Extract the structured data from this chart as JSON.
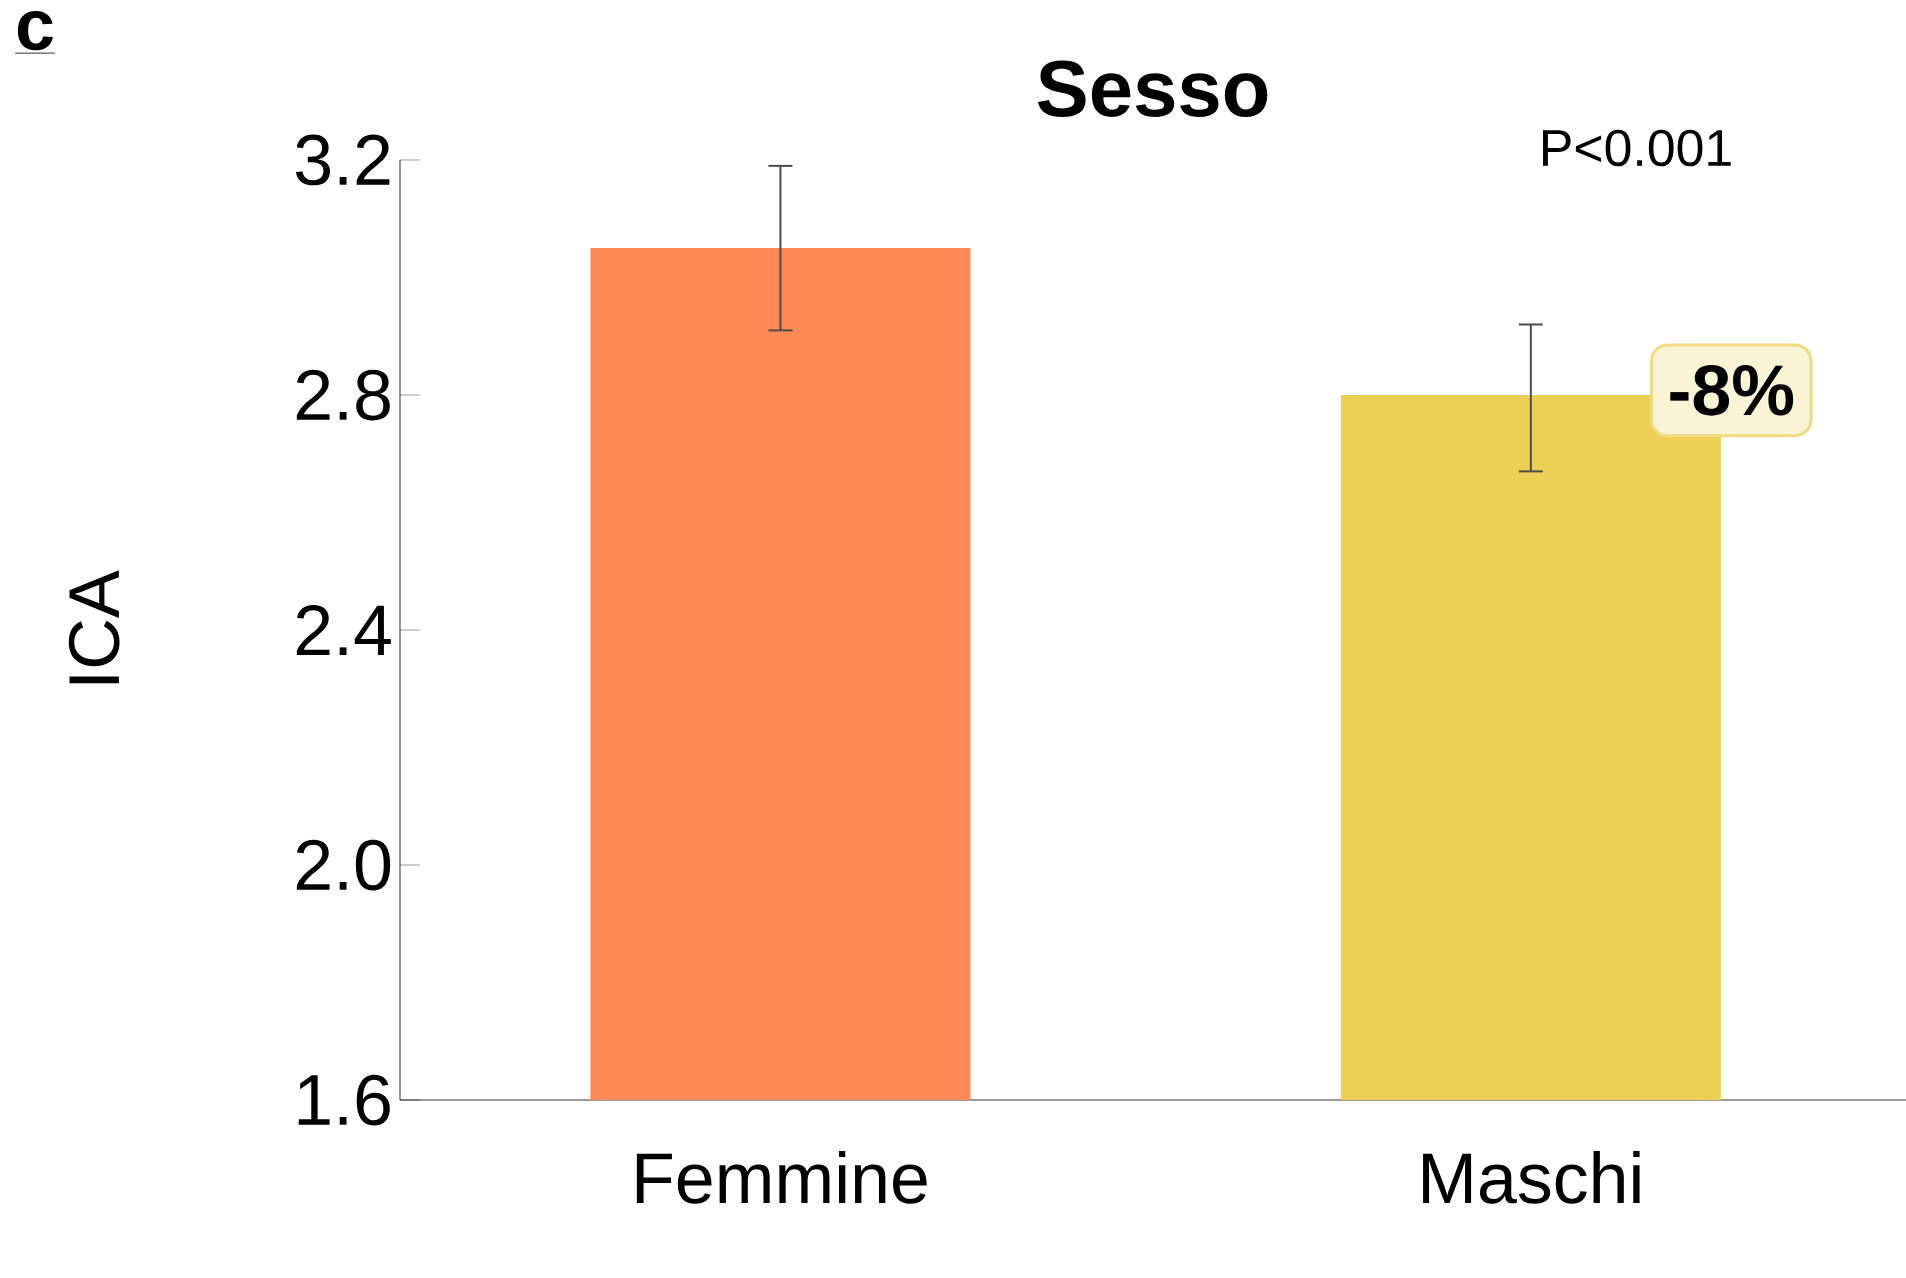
{
  "chart_data": {
    "type": "bar",
    "title": "Sesso",
    "ylabel": "ICA",
    "categories": [
      "Femmine",
      "Maschi"
    ],
    "values": [
      3.05,
      2.8
    ],
    "colors": [
      "#ff8a55",
      "#eccf55"
    ],
    "errors": [
      [
        2.91,
        3.19
      ],
      [
        2.67,
        2.92
      ]
    ],
    "ylim": [
      1.6,
      3.2
    ],
    "yticks": [
      1.6,
      {
        "value": 2.0,
        "label": "2.0"
      },
      2.4,
      2.8,
      3.2
    ],
    "grid": false,
    "annotations": [
      "c",
      "P<0.001",
      "-8%"
    ]
  }
}
